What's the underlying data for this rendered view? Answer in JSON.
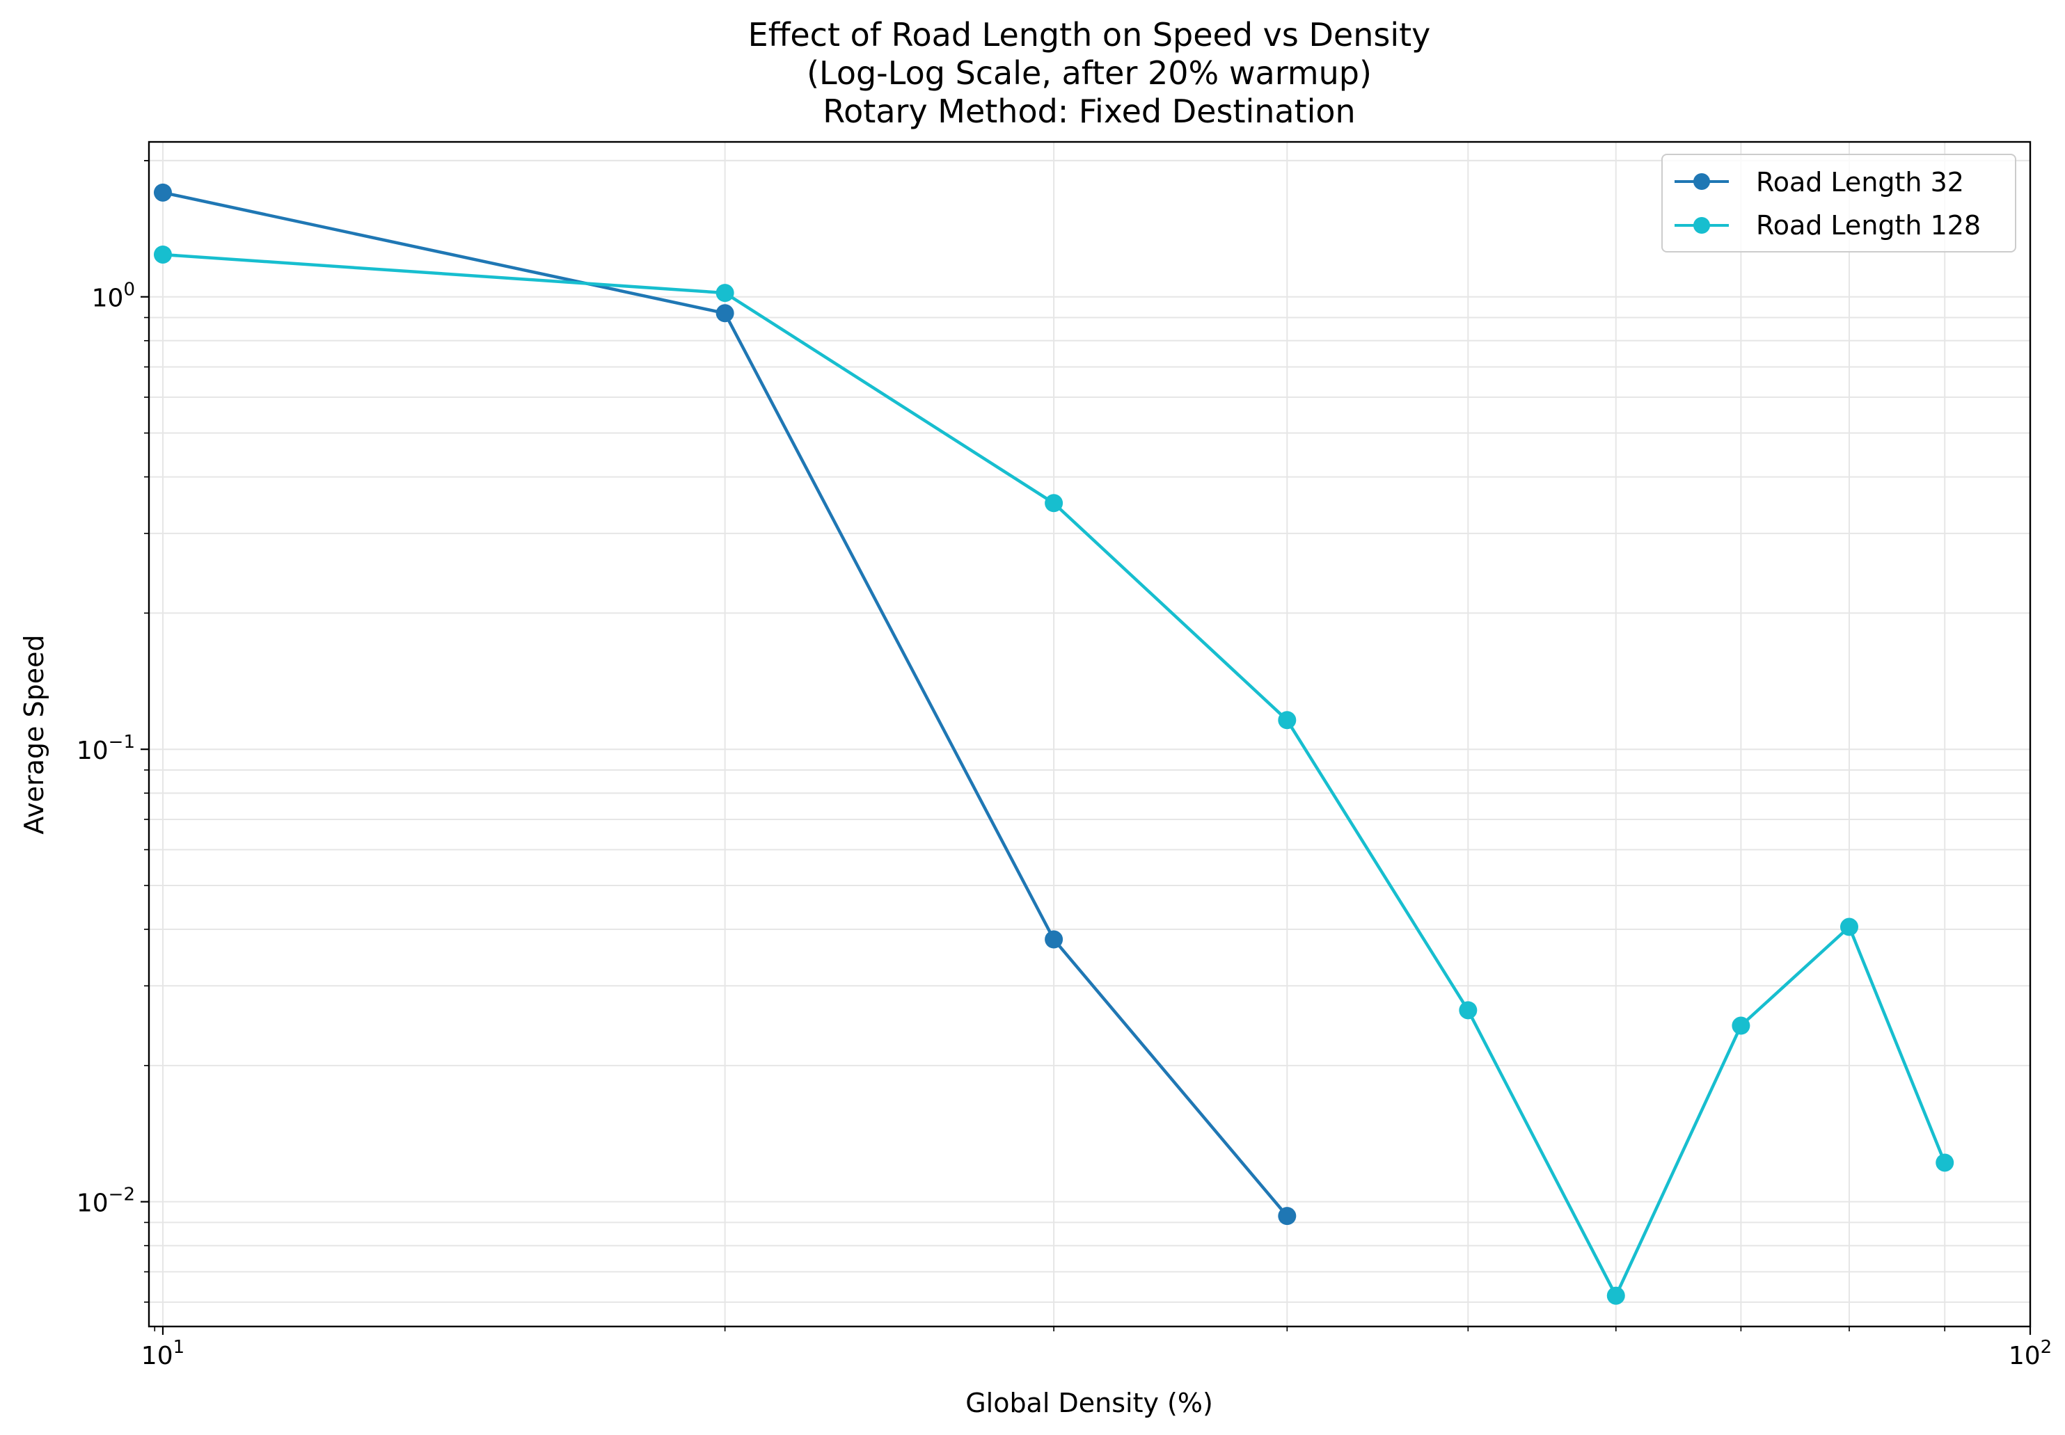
{
  "chart_data": {
    "type": "line",
    "title": [
      "Effect of Road Length on Speed vs Density",
      "(Log-Log Scale, after 20% warmup)",
      "Rotary Method: Fixed Destination"
    ],
    "xlabel": "Global Density (%)",
    "ylabel": "Average Speed",
    "xscale": "log",
    "yscale": "log",
    "xlim": [
      9.83,
      100
    ],
    "ylim": [
      0.0053,
      2.2
    ],
    "x_tick_labels": [
      {
        "base": "10",
        "exp": "1",
        "value": 10
      },
      {
        "base": "10",
        "exp": "2",
        "value": 100
      }
    ],
    "y_tick_labels": [
      {
        "base": "10",
        "exp": "0",
        "value": 1
      },
      {
        "base": "10",
        "exp": "−1",
        "value": 0.1
      },
      {
        "base": "10",
        "exp": "−2",
        "value": 0.01
      }
    ],
    "grid": true,
    "legend_position": "top-right",
    "series": [
      {
        "name": "Road Length 32",
        "color": "#1f77b4",
        "x": [
          10,
          20,
          30,
          40
        ],
        "y": [
          1.7,
          0.92,
          0.038,
          0.0093
        ]
      },
      {
        "name": "Road Length 128",
        "color": "#17becf",
        "x": [
          10,
          20,
          30,
          40,
          50,
          60,
          70,
          80,
          90
        ],
        "y": [
          1.24,
          1.02,
          0.35,
          0.116,
          0.0265,
          0.0062,
          0.0245,
          0.0405,
          0.0122
        ]
      }
    ]
  }
}
